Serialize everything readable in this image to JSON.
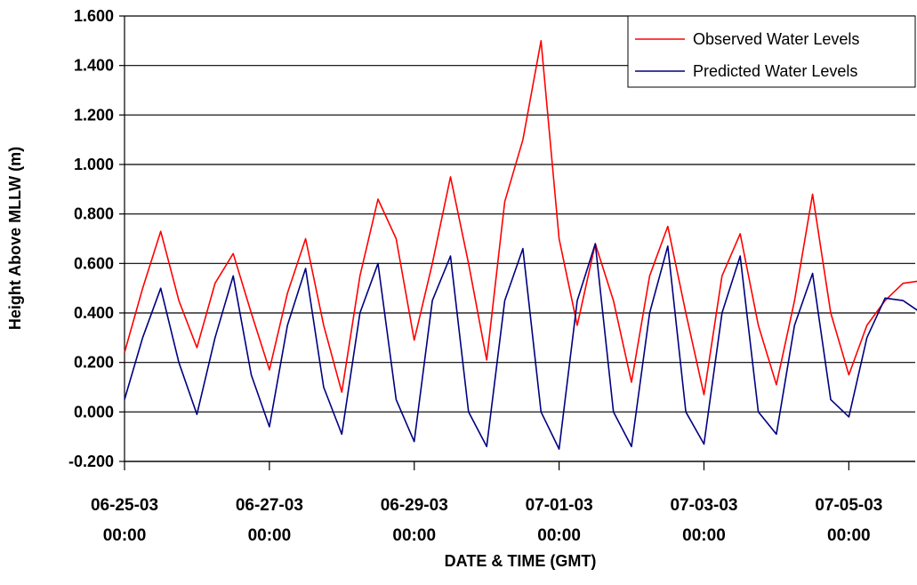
{
  "chart_data": {
    "type": "line",
    "xlabel": "DATE & TIME (GMT)",
    "ylabel": "Height Above MLLW (m)",
    "ylim": [
      -0.2,
      1.6
    ],
    "xlim_hours": [
      0,
      262
    ],
    "y_ticks": [
      "-0.200",
      "0.000",
      "0.200",
      "0.400",
      "0.600",
      "0.800",
      "1.000",
      "1.200",
      "1.400",
      "1.600"
    ],
    "y_tick_values": [
      -0.2,
      0.0,
      0.2,
      0.4,
      0.6,
      0.8,
      1.0,
      1.2,
      1.4,
      1.6
    ],
    "x_ticks": [
      {
        "date": "06-25-03",
        "time": "00:00"
      },
      {
        "date": "06-27-03",
        "time": "00:00"
      },
      {
        "date": "06-29-03",
        "time": "00:00"
      },
      {
        "date": "07-01-03",
        "time": "00:00"
      },
      {
        "date": "07-03-03",
        "time": "00:00"
      },
      {
        "date": "07-05-03",
        "time": "00:00"
      }
    ],
    "grid": "horizontal",
    "legend_position": "top-right",
    "series": [
      {
        "name": "Observed Water Levels",
        "color": "#ff0000",
        "x": [
          "06-25-03 00:00",
          "06-25-03 06:00",
          "06-25-03 12:00",
          "06-25-03 18:00",
          "06-26-03 00:00",
          "06-26-03 06:00",
          "06-26-03 12:00",
          "06-26-03 18:00",
          "06-27-03 00:00",
          "06-27-03 06:00",
          "06-27-03 12:00",
          "06-27-03 18:00",
          "06-28-03 00:00",
          "06-28-03 06:00",
          "06-28-03 12:00",
          "06-28-03 18:00",
          "06-29-03 00:00",
          "06-29-03 06:00",
          "06-29-03 12:00",
          "06-29-03 18:00",
          "06-30-03 00:00",
          "06-30-03 06:00",
          "06-30-03 12:00",
          "06-30-03 18:00",
          "07-01-03 00:00",
          "07-01-03 06:00",
          "07-01-03 12:00",
          "07-01-03 18:00",
          "07-02-03 00:00",
          "07-02-03 06:00",
          "07-02-03 12:00",
          "07-02-03 18:00",
          "07-03-03 00:00",
          "07-03-03 06:00",
          "07-03-03 12:00",
          "07-03-03 18:00",
          "07-04-03 00:00",
          "07-04-03 06:00",
          "07-04-03 12:00",
          "07-04-03 18:00",
          "07-05-03 00:00",
          "07-05-03 06:00",
          "07-05-03 12:00",
          "07-05-03 18:00",
          "07-06-03 00:00"
        ],
        "y": [
          0.24,
          0.5,
          0.73,
          0.45,
          0.26,
          0.52,
          0.64,
          0.4,
          0.17,
          0.48,
          0.7,
          0.35,
          0.08,
          0.55,
          0.86,
          0.7,
          0.29,
          0.6,
          0.95,
          0.6,
          0.21,
          0.85,
          1.1,
          1.5,
          0.7,
          0.35,
          0.68,
          0.45,
          0.12,
          0.55,
          0.75,
          0.4,
          0.07,
          0.55,
          0.72,
          0.35,
          0.11,
          0.45,
          0.88,
          0.4,
          0.15,
          0.35,
          0.45,
          0.52,
          0.53
        ]
      },
      {
        "name": "Predicted Water Levels",
        "color": "#000080",
        "x": [
          "06-25-03 00:00",
          "06-25-03 06:00",
          "06-25-03 12:00",
          "06-25-03 18:00",
          "06-26-03 00:00",
          "06-26-03 06:00",
          "06-26-03 12:00",
          "06-26-03 18:00",
          "06-27-03 00:00",
          "06-27-03 06:00",
          "06-27-03 12:00",
          "06-27-03 18:00",
          "06-28-03 00:00",
          "06-28-03 06:00",
          "06-28-03 12:00",
          "06-28-03 18:00",
          "06-29-03 00:00",
          "06-29-03 06:00",
          "06-29-03 12:00",
          "06-29-03 18:00",
          "06-30-03 00:00",
          "06-30-03 06:00",
          "06-30-03 12:00",
          "06-30-03 18:00",
          "07-01-03 00:00",
          "07-01-03 06:00",
          "07-01-03 12:00",
          "07-01-03 18:00",
          "07-02-03 00:00",
          "07-02-03 06:00",
          "07-02-03 12:00",
          "07-02-03 18:00",
          "07-03-03 00:00",
          "07-03-03 06:00",
          "07-03-03 12:00",
          "07-03-03 18:00",
          "07-04-03 00:00",
          "07-04-03 06:00",
          "07-04-03 12:00",
          "07-04-03 18:00",
          "07-05-03 00:00",
          "07-05-03 06:00",
          "07-05-03 12:00",
          "07-05-03 18:00",
          "07-06-03 00:00"
        ],
        "y": [
          0.05,
          0.3,
          0.5,
          0.2,
          -0.01,
          0.3,
          0.55,
          0.15,
          -0.06,
          0.35,
          0.58,
          0.1,
          -0.09,
          0.4,
          0.6,
          0.05,
          -0.12,
          0.45,
          0.63,
          0.0,
          -0.14,
          0.45,
          0.66,
          0.0,
          -0.15,
          0.45,
          0.68,
          0.0,
          -0.14,
          0.4,
          0.67,
          0.0,
          -0.13,
          0.4,
          0.63,
          0.0,
          -0.09,
          0.35,
          0.56,
          0.05,
          -0.02,
          0.3,
          0.46,
          0.45,
          0.4
        ]
      }
    ]
  }
}
